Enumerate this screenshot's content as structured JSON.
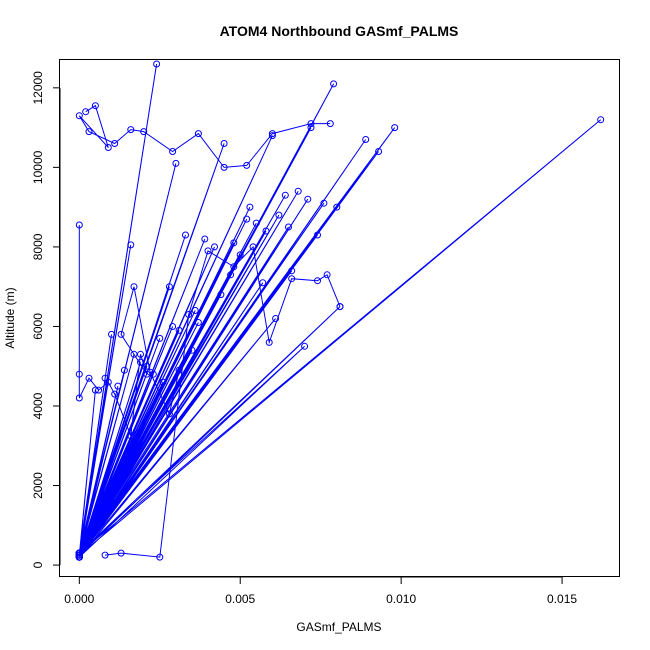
{
  "chart_data": {
    "type": "line",
    "title": "ATOM4 Northbound GASmf_PALMS",
    "xlabel": "GASmf_PALMS",
    "ylabel": "Altitude (m)",
    "xlim": [
      -0.0006,
      0.0168
    ],
    "ylim": [
      -300,
      12700
    ],
    "xticks": [
      {
        "value": 0.0,
        "label": "0.000"
      },
      {
        "value": 0.005,
        "label": "0.005"
      },
      {
        "value": 0.01,
        "label": "0.010"
      },
      {
        "value": 0.015,
        "label": "0.015"
      }
    ],
    "yticks": [
      {
        "value": 0,
        "label": "0"
      },
      {
        "value": 2000,
        "label": "2000"
      },
      {
        "value": 4000,
        "label": "4000"
      },
      {
        "value": 6000,
        "label": "6000"
      },
      {
        "value": 8000,
        "label": "8000"
      },
      {
        "value": 10000,
        "label": "10000"
      },
      {
        "value": 12000,
        "label": "12000"
      }
    ],
    "grid": false,
    "colors": {
      "series": "#0000ff",
      "axes": "#000000"
    },
    "series": [
      {
        "marker": "open-circle",
        "x": [
          0.0,
          0.0024,
          0.0,
          0.003,
          0.0,
          0.0016,
          0.0,
          0.0052,
          0.0,
          0.0072,
          0.0,
          0.0045,
          0.0,
          0.0033,
          0.0,
          0.0064,
          0.0,
          0.0014,
          0.0,
          0.0057,
          0.0,
          0.0081,
          0.0,
          0.0023,
          0.0,
          0.0039,
          0.0,
          0.006,
          0.0,
          0.0079,
          0.0,
          0.001,
          0.0,
          0.0055,
          0.0,
          0.0028,
          0.0,
          0.0068,
          0.0,
          0.0048,
          0.0,
          0.0098,
          0.0,
          0.0019,
          0.0,
          0.0162,
          0.0,
          0.0035,
          0.0,
          0.0061,
          0.0,
          0.0008,
          0.0,
          0.0042,
          0.0,
          0.0071,
          0.0,
          0.0026,
          0.0,
          0.005,
          0.0,
          0.0089,
          0.0,
          0.0017,
          0.0,
          0.0066,
          0.0,
          0.0037,
          0.0,
          0.0076,
          0.0,
          0.0012,
          0.0,
          0.0058,
          0.0,
          0.0031,
          0.0,
          0.0093,
          0.0,
          0.0044,
          0.0,
          0.0021,
          0.0,
          0.007,
          0.0,
          0.0053,
          0.0,
          0.0029,
          0.0,
          0.0065,
          0.0,
          0.0005,
          0.0,
          0.0047,
          0.0,
          0.008,
          0.0,
          0.0018,
          0.0,
          0.0036,
          0.0,
          0.0062,
          0.0,
          0.0025,
          0.0,
          0.0074
        ],
        "y": [
          200,
          12600,
          250,
          10100,
          300,
          8050,
          200,
          8700,
          250,
          11000,
          300,
          10600,
          200,
          8300,
          250,
          9300,
          300,
          4900,
          200,
          7100,
          250,
          6500,
          300,
          4800,
          200,
          8200,
          250,
          10800,
          300,
          12100,
          200,
          5800,
          250,
          8600,
          300,
          7000,
          200,
          9400,
          250,
          8100,
          300,
          11000,
          200,
          5100,
          250,
          11200,
          300,
          5400,
          200,
          6200,
          250,
          4700,
          300,
          8000,
          200,
          9200,
          250,
          4600,
          300,
          7800,
          200,
          10700,
          250,
          5300,
          300,
          7400,
          200,
          6100,
          250,
          9100,
          300,
          4500,
          200,
          8400,
          250,
          5900,
          300,
          10400,
          200,
          6800,
          250,
          5000,
          300,
          5500,
          200,
          9000,
          250,
          6000,
          300,
          8500,
          200,
          4400,
          250,
          7300,
          300,
          9000,
          200,
          3300,
          250,
          6400,
          300,
          8800,
          200,
          5700,
          250,
          8300
        ]
      },
      {
        "marker": "open-circle",
        "x": [
          0.0002,
          0.0005,
          0.0009,
          0.0,
          0.0003,
          0.0011,
          0.0016,
          0.002,
          0.0029,
          0.0037,
          0.0045,
          0.0052,
          0.006,
          0.0072,
          0.0078
        ],
        "y": [
          11400,
          11550,
          10500,
          11300,
          10900,
          10600,
          10950,
          10900,
          10400,
          10850,
          10000,
          10050,
          10850,
          11100,
          11100
        ]
      },
      {
        "marker": "open-circle",
        "x": [
          0.0,
          0.0,
          0.0,
          0.0003,
          0.0006,
          0.0009,
          0.0011,
          0.0016,
          0.0019,
          0.0021,
          0.0013,
          0.0017,
          0.0022,
          0.0028,
          0.0031
        ],
        "y": [
          8550,
          4800,
          4200,
          4700,
          4400,
          4600,
          4300,
          3250,
          5300,
          4800,
          5800,
          7000,
          4850,
          3800,
          4900
        ]
      },
      {
        "marker": "open-circle",
        "x": [
          0.0008,
          0.0013,
          0.0025,
          0.0034,
          0.004,
          0.0048,
          0.0054,
          0.0059,
          0.0066,
          0.0074,
          0.0077,
          0.0081
        ],
        "y": [
          250,
          300,
          200,
          6300,
          7900,
          7500,
          8000,
          5600,
          7200,
          7150,
          7300,
          6500
        ]
      }
    ]
  }
}
